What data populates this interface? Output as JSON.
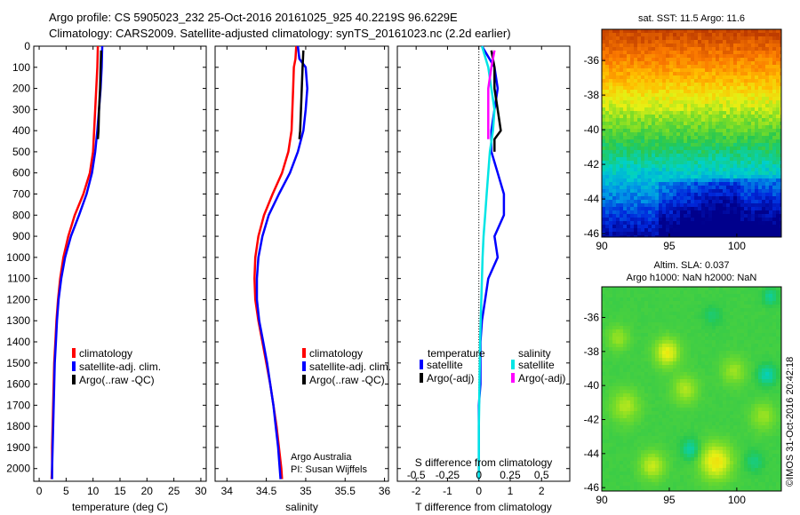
{
  "header": {
    "line1": "Argo profile: CS 5905023_232 25-Oct-2016 20161025_925 40.2219S 96.6229E",
    "line2": "Climatology: CARS2009. Satellite-adjusted climatology: synTS_20161023.nc (2.2d earlier)"
  },
  "credit": "Argo Australia",
  "pi": "PI: Susan Wijffels",
  "imos_stamp": "©IMOS 31-Oct-2016 20:42:18",
  "colors": {
    "climatology": "#ff0000",
    "satellite": "#0000ff",
    "argo": "#000000",
    "s_satellite": "#00e5e5",
    "s_argo": "#ff00ff"
  },
  "chart_data": [
    {
      "type": "line",
      "id": "temperature",
      "xlabel": "temperature (deg C)",
      "ylabel": "",
      "xlim": [
        -1,
        31
      ],
      "ylim": [
        2060,
        0
      ],
      "xticks": [
        "0",
        "5",
        "10",
        "15",
        "20",
        "25",
        "30"
      ],
      "xtick_values": [
        0,
        5,
        10,
        15,
        20,
        25,
        30
      ],
      "yticks": [
        "0",
        "100",
        "200",
        "300",
        "400",
        "500",
        "600",
        "700",
        "800",
        "900",
        "1000",
        "1100",
        "1200",
        "1300",
        "1400",
        "1500",
        "1600",
        "1700",
        "1800",
        "1900",
        "2000"
      ],
      "ytick_values": [
        0,
        100,
        200,
        300,
        400,
        500,
        600,
        700,
        800,
        900,
        1000,
        1100,
        1200,
        1300,
        1400,
        1500,
        1600,
        1700,
        1800,
        1900,
        2000
      ],
      "legend": [
        "climatology",
        "satellite-adj. clim.",
        "Argo(..raw -QC)"
      ],
      "series": [
        {
          "name": "climatology",
          "color": "#ff0000",
          "points": [
            [
              10.9,
              0
            ],
            [
              10.8,
              100
            ],
            [
              10.6,
              200
            ],
            [
              10.4,
              300
            ],
            [
              10.2,
              400
            ],
            [
              10.0,
              500
            ],
            [
              9.4,
              600
            ],
            [
              8.2,
              700
            ],
            [
              6.6,
              800
            ],
            [
              5.4,
              900
            ],
            [
              4.5,
              1000
            ],
            [
              3.9,
              1100
            ],
            [
              3.5,
              1200
            ],
            [
              3.2,
              1300
            ],
            [
              3.0,
              1400
            ],
            [
              2.8,
              1500
            ],
            [
              2.7,
              1600
            ],
            [
              2.6,
              1700
            ],
            [
              2.5,
              1800
            ],
            [
              2.4,
              1900
            ],
            [
              2.4,
              2000
            ],
            [
              2.3,
              2050
            ]
          ]
        },
        {
          "name": "satellite-adj. clim.",
          "color": "#0000ff",
          "points": [
            [
              11.7,
              0
            ],
            [
              11.6,
              100
            ],
            [
              11.4,
              200
            ],
            [
              11.1,
              300
            ],
            [
              10.8,
              400
            ],
            [
              10.4,
              500
            ],
            [
              9.8,
              600
            ],
            [
              8.8,
              700
            ],
            [
              7.4,
              800
            ],
            [
              5.9,
              900
            ],
            [
              4.8,
              1000
            ],
            [
              4.1,
              1100
            ],
            [
              3.6,
              1200
            ],
            [
              3.3,
              1300
            ],
            [
              3.1,
              1400
            ],
            [
              2.9,
              1500
            ],
            [
              2.8,
              1600
            ],
            [
              2.7,
              1700
            ],
            [
              2.6,
              1800
            ],
            [
              2.5,
              1900
            ],
            [
              2.4,
              2000
            ],
            [
              2.4,
              2050
            ]
          ]
        },
        {
          "name": "Argo(..raw -QC)",
          "color": "#000000",
          "points": [
            [
              11.5,
              20
            ],
            [
              11.4,
              100
            ],
            [
              11.3,
              200
            ],
            [
              11.1,
              300
            ],
            [
              11.0,
              400
            ],
            [
              10.9,
              440
            ]
          ]
        }
      ]
    },
    {
      "type": "line",
      "id": "salinity",
      "xlabel": "salinity",
      "xlim": [
        33.85,
        36.05
      ],
      "ylim": [
        2060,
        0
      ],
      "xticks": [
        "34",
        "34.5",
        "35",
        "35.5",
        "36"
      ],
      "xtick_values": [
        34,
        34.5,
        35,
        35.5,
        36
      ],
      "legend": [
        "climatology",
        "satellite-adj. clim.",
        "Argo(..raw -QC)"
      ],
      "series": [
        {
          "name": "climatology",
          "color": "#ff0000",
          "points": [
            [
              34.88,
              0
            ],
            [
              34.87,
              60
            ],
            [
              34.85,
              100
            ],
            [
              34.84,
              200
            ],
            [
              34.83,
              300
            ],
            [
              34.82,
              400
            ],
            [
              34.78,
              500
            ],
            [
              34.7,
              600
            ],
            [
              34.58,
              700
            ],
            [
              34.47,
              800
            ],
            [
              34.4,
              900
            ],
            [
              34.36,
              1000
            ],
            [
              34.35,
              1100
            ],
            [
              34.36,
              1200
            ],
            [
              34.4,
              1300
            ],
            [
              34.45,
              1400
            ],
            [
              34.5,
              1500
            ],
            [
              34.55,
              1600
            ],
            [
              34.59,
              1700
            ],
            [
              34.63,
              1800
            ],
            [
              34.66,
              1900
            ],
            [
              34.69,
              2000
            ],
            [
              34.7,
              2050
            ]
          ]
        },
        {
          "name": "satellite-adj. clim.",
          "color": "#0000ff",
          "points": [
            [
              34.9,
              0
            ],
            [
              34.92,
              60
            ],
            [
              35.0,
              100
            ],
            [
              35.02,
              200
            ],
            [
              35.0,
              300
            ],
            [
              34.97,
              400
            ],
            [
              34.9,
              500
            ],
            [
              34.8,
              600
            ],
            [
              34.66,
              700
            ],
            [
              34.53,
              800
            ],
            [
              34.45,
              900
            ],
            [
              34.4,
              1000
            ],
            [
              34.38,
              1100
            ],
            [
              34.38,
              1200
            ],
            [
              34.41,
              1300
            ],
            [
              34.46,
              1400
            ],
            [
              34.51,
              1500
            ],
            [
              34.55,
              1600
            ],
            [
              34.59,
              1700
            ],
            [
              34.62,
              1800
            ],
            [
              34.65,
              1900
            ],
            [
              34.67,
              2000
            ],
            [
              34.68,
              2050
            ]
          ]
        },
        {
          "name": "Argo(..raw -QC)",
          "color": "#000000",
          "points": [
            [
              34.97,
              20
            ],
            [
              34.96,
              100
            ],
            [
              34.95,
              200
            ],
            [
              34.94,
              300
            ],
            [
              34.93,
              400
            ],
            [
              34.92,
              440
            ]
          ]
        }
      ]
    },
    {
      "type": "line",
      "id": "difference",
      "xlabel": "T difference from climatology",
      "xlabel_top": "S difference from climatology",
      "xlim": [
        -2.6,
        2.9
      ],
      "ylim": [
        2060,
        0
      ],
      "xticks": [
        "-2",
        "-1",
        "0",
        "1",
        "2"
      ],
      "xtick_values": [
        -2,
        -1,
        0,
        1,
        2
      ],
      "s_xticks": [
        "-0.5",
        "-0.25",
        "0",
        "0.25",
        "0.5"
      ],
      "s_xtick_positions": [
        -2,
        -1,
        0,
        1,
        2
      ],
      "legend_t_title": "temperature",
      "legend_s_title": "salinity",
      "legend_t": [
        "satellite",
        "Argo(-adj)"
      ],
      "legend_s": [
        "satellite",
        "Argo(-adj)"
      ],
      "series": [
        {
          "name": "T satellite",
          "color": "#0000ff",
          "points": [
            [
              0.1,
              0
            ],
            [
              0.5,
              100
            ],
            [
              0.6,
              200
            ],
            [
              0.5,
              300
            ],
            [
              0.4,
              400
            ],
            [
              0.4,
              500
            ],
            [
              0.6,
              600
            ],
            [
              0.8,
              700
            ],
            [
              0.8,
              800
            ],
            [
              0.5,
              900
            ],
            [
              0.6,
              1000
            ],
            [
              0.3,
              1100
            ],
            [
              0.2,
              1200
            ],
            [
              0.1,
              1300
            ],
            [
              0.05,
              1400
            ],
            [
              0.05,
              1500
            ],
            [
              0.05,
              1600
            ],
            [
              0,
              1700
            ],
            [
              0,
              1800
            ],
            [
              0,
              1900
            ],
            [
              0,
              2000
            ],
            [
              0,
              2050
            ]
          ]
        },
        {
          "name": "T Argo(-adj)",
          "color": "#000000",
          "points": [
            [
              0.4,
              20
            ],
            [
              0.5,
              100
            ],
            [
              0.5,
              200
            ],
            [
              0.6,
              300
            ],
            [
              0.7,
              400
            ],
            [
              0.5,
              440
            ],
            [
              0.5,
              500
            ]
          ]
        },
        {
          "name": "S satellite",
          "color": "#00e5e5",
          "points": [
            [
              0.1,
              0
            ],
            [
              0.3,
              100
            ],
            [
              0.4,
              200
            ],
            [
              0.5,
              300
            ],
            [
              0.45,
              400
            ],
            [
              0.35,
              500
            ],
            [
              0.3,
              600
            ],
            [
              0.25,
              700
            ],
            [
              0.2,
              800
            ],
            [
              0.15,
              900
            ],
            [
              0.12,
              1000
            ],
            [
              0.1,
              1100
            ],
            [
              0.08,
              1200
            ],
            [
              0.06,
              1300
            ],
            [
              0.04,
              1400
            ],
            [
              0.03,
              1500
            ],
            [
              0.02,
              1600
            ],
            [
              0.01,
              1700
            ],
            [
              0,
              1800
            ],
            [
              0,
              1900
            ],
            [
              0,
              2000
            ],
            [
              0,
              2050
            ]
          ]
        },
        {
          "name": "S Argo(-adj)",
          "color": "#ff00ff",
          "points": [
            [
              0.5,
              20
            ],
            [
              0.4,
              100
            ],
            [
              0.3,
              200
            ],
            [
              0.3,
              300
            ],
            [
              0.3,
              400
            ],
            [
              0.3,
              440
            ]
          ]
        }
      ]
    },
    {
      "type": "heatmap",
      "id": "sst-map",
      "title": "sat. SST: 11.5 Argo: 11.6",
      "xlim": [
        90,
        103.3
      ],
      "ylim": [
        -46.2,
        -34.2
      ],
      "xticks": [
        "90",
        "95",
        "100"
      ],
      "xtick_values": [
        90,
        95,
        100
      ],
      "yticks": [
        "-36",
        "-38",
        "-40",
        "-42",
        "-44",
        "-46"
      ],
      "ytick_values": [
        -36,
        -38,
        -40,
        -42,
        -44,
        -46
      ]
    },
    {
      "type": "heatmap",
      "id": "sla-map",
      "title": "Altim. SLA: 0.037",
      "subtitle": "Argo h1000: NaN h2000: NaN",
      "xlim": [
        90,
        103.3
      ],
      "ylim": [
        -46.2,
        -34.2
      ],
      "xticks": [
        "90",
        "95",
        "100"
      ],
      "xtick_values": [
        90,
        95,
        100
      ],
      "yticks": [
        "-36",
        "-38",
        "-40",
        "-42",
        "-44",
        "-46"
      ],
      "ytick_values": [
        -36,
        -38,
        -40,
        -42,
        -44,
        -46
      ]
    }
  ]
}
